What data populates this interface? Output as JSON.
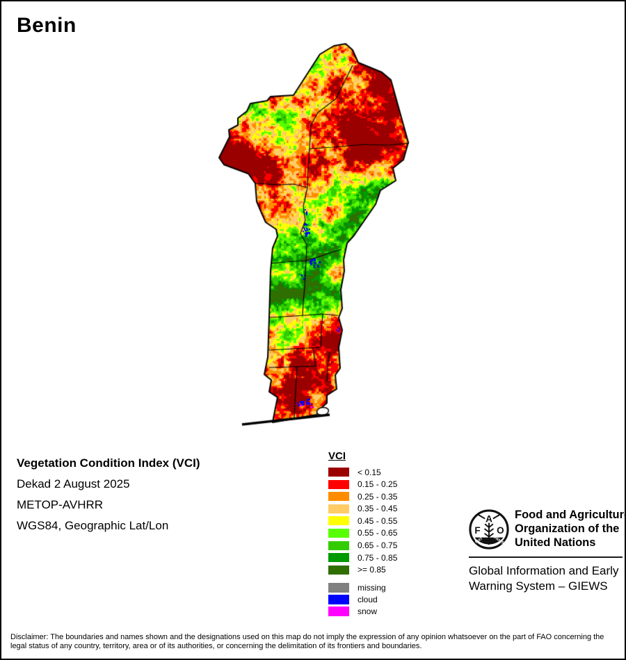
{
  "title": "Benin",
  "info": {
    "line1": "Vegetation Condition Index (VCI)",
    "line2": "Dekad 2 August 2025",
    "line3": "METOP-AVHRR",
    "line4": "WGS84, Geographic Lat/Lon"
  },
  "legend": {
    "title": "VCI",
    "entries": [
      {
        "label": "< 0.15",
        "color": "#9B0000"
      },
      {
        "label": "0.15 - 0.25",
        "color": "#FF0000"
      },
      {
        "label": "0.25 - 0.35",
        "color": "#FF8C00"
      },
      {
        "label": "0.35 - 0.45",
        "color": "#FFCC66"
      },
      {
        "label": "0.45 - 0.55",
        "color": "#FFFF00"
      },
      {
        "label": "0.55 - 0.65",
        "color": "#58FF00"
      },
      {
        "label": "0.65 - 0.75",
        "color": "#33CC00"
      },
      {
        "label": "0.75 - 0.85",
        "color": "#009900"
      },
      {
        "label": ">= 0.85",
        "color": "#2F6E00"
      }
    ],
    "extra_entries": [
      {
        "label": "missing",
        "color": "#808080"
      },
      {
        "label": "cloud",
        "color": "#0000FF"
      },
      {
        "label": "snow",
        "color": "#FF00FF"
      }
    ]
  },
  "footer": {
    "org_name_lines": [
      "Food and Agriculture",
      "Organization of the",
      "United Nations"
    ],
    "giews_lines": [
      "Global Information and Early",
      "Warning System – GIEWS"
    ],
    "logo": {
      "f": "F",
      "a": "A",
      "o": "O",
      "motto_left": "FIAT",
      "motto_right": "PANIS"
    }
  },
  "disclaimer": "Disclaimer: The boundaries and names shown and the designations used on this map do not imply the expression of any opinion whatsoever on the part of FAO concerning the legal status of any country, territory, area or of its authorities, or concerning the delimitation of its frontiers and boundaries."
}
